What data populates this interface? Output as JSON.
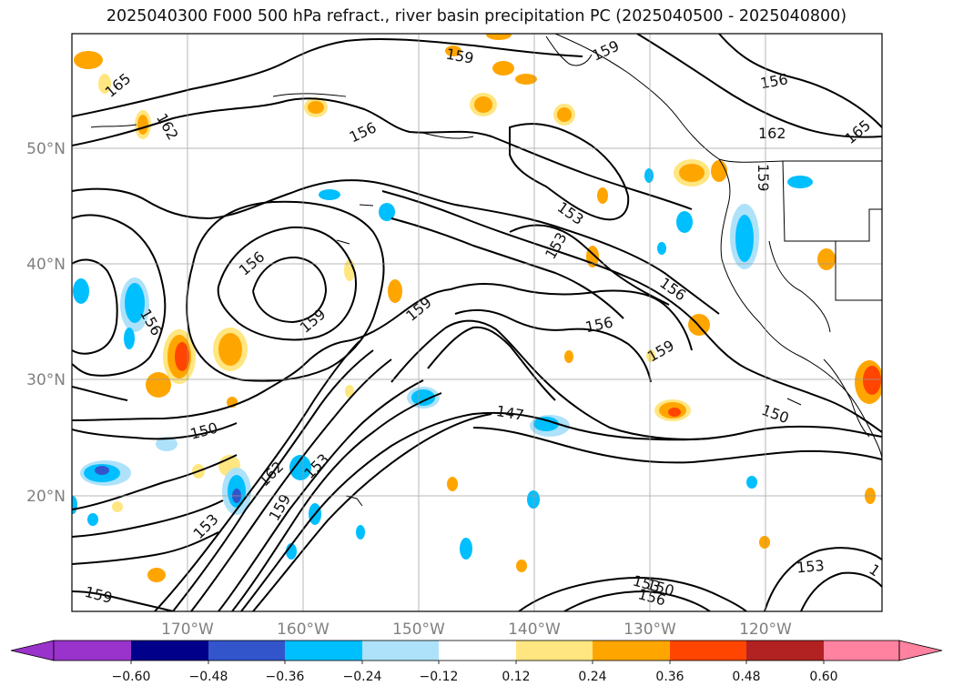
{
  "title": "2025040300 F000 500 hPa refract., river basin precipitation PC (2025040500 - 2025040800)",
  "map": {
    "lon_range": [
      -180,
      -110
    ],
    "lat_range": [
      10,
      60
    ],
    "lat_ticks": [
      "20°N",
      "30°N",
      "40°N",
      "50°N"
    ],
    "lon_ticks": [
      "170°W",
      "160°W",
      "150°W",
      "140°W",
      "130°W",
      "120°W"
    ],
    "contour_labels": [
      "165",
      "162",
      "159",
      "156",
      "159",
      "156",
      "165",
      "162",
      "159",
      "153",
      "153",
      "156",
      "156",
      "159",
      "159",
      "156",
      "159",
      "156",
      "150",
      "147",
      "150",
      "162",
      "153",
      "153",
      "159",
      "153",
      "159",
      "150",
      "156",
      "153",
      "1"
    ]
  },
  "colorbar": {
    "tick_labels": [
      "−0.60",
      "−0.48",
      "−0.36",
      "−0.24",
      "−0.12",
      "0.12",
      "0.24",
      "0.36",
      "0.48",
      "0.60"
    ],
    "colors": [
      "#9933cc",
      "#00008b",
      "#3355cc",
      "#00bfff",
      "#aee2fa",
      "#ffffff",
      "#ffe680",
      "#ffa500",
      "#ff4500",
      "#b22222",
      "#ff82a0"
    ]
  }
}
